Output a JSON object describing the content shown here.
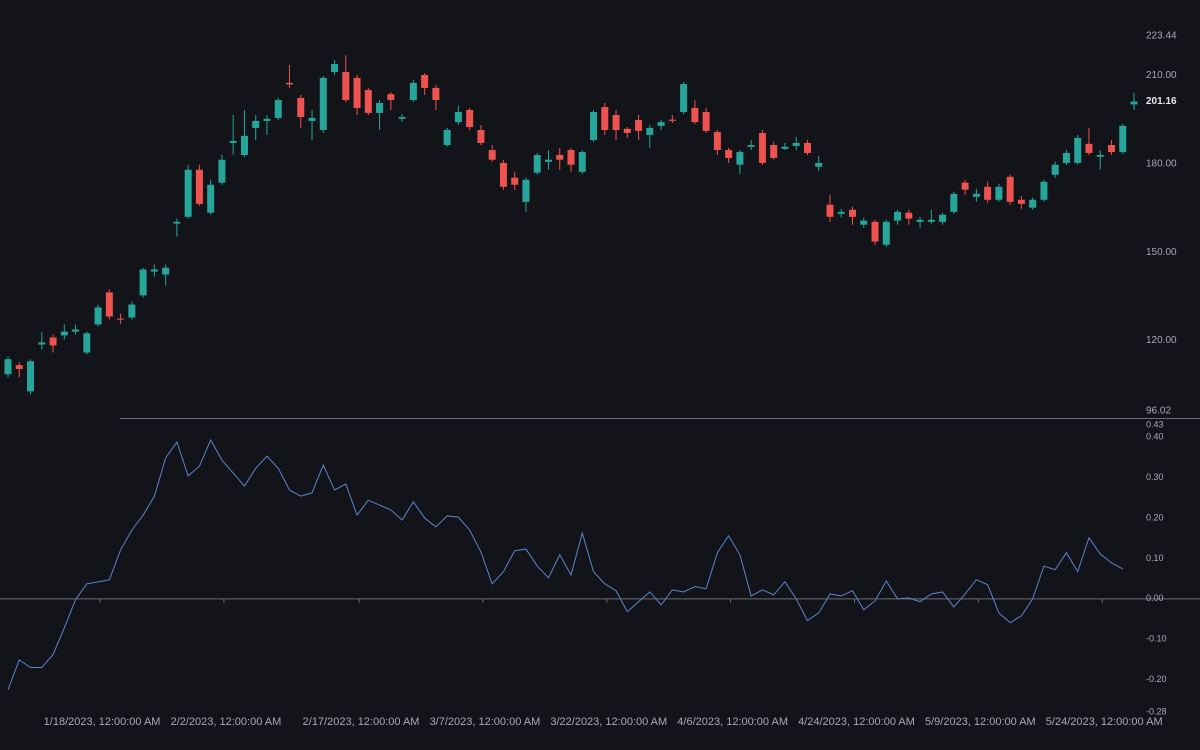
{
  "chart_data": [
    {
      "type": "candlestick",
      "categories": [
        null,
        null,
        null,
        null,
        null,
        null,
        null,
        null,
        "1/18/2023, 12:00:00 AM",
        null,
        null,
        null,
        null,
        null,
        null,
        null,
        null,
        null,
        null,
        "2/2/2023, 12:00:00 AM",
        null,
        null,
        null,
        null,
        null,
        null,
        null,
        null,
        null,
        null,
        null,
        "2/17/2023, 12:00:00 AM",
        null,
        null,
        null,
        null,
        null,
        null,
        null,
        null,
        null,
        null,
        "3/7/2023, 12:00:00 AM",
        null,
        null,
        null,
        null,
        null,
        null,
        null,
        null,
        null,
        null,
        "3/22/2023, 12:00:00 AM",
        null,
        null,
        null,
        null,
        null,
        null,
        null,
        null,
        null,
        null,
        "4/6/2023, 12:00:00 AM",
        null,
        null,
        null,
        null,
        null,
        null,
        null,
        null,
        null,
        null,
        "4/24/2023, 12:00:00 AM",
        null,
        null,
        null,
        null,
        null,
        null,
        null,
        null,
        null,
        null,
        "5/9/2023, 12:00:00 AM",
        null,
        null,
        null,
        null,
        null,
        null,
        null,
        null,
        null,
        null,
        "5/24/2023, 12:00:00 AM",
        null,
        null,
        null
      ],
      "open": [
        108.5,
        111.6,
        102.7,
        118.6,
        121.0,
        121.7,
        123.0,
        115.9,
        125.4,
        136.3,
        127.4,
        127.8,
        135.3,
        143.4,
        142.4,
        159.7,
        162.0,
        178.0,
        163.4,
        173.6,
        187.1,
        183.0,
        192.2,
        194.6,
        195.6,
        207.5,
        202.4,
        194.6,
        191.5,
        211.2,
        211.2,
        209.2,
        205.1,
        197.3,
        203.7,
        195.3,
        201.7,
        210.2,
        205.8,
        186.4,
        194.2,
        198.3,
        191.5,
        184.7,
        180.3,
        175.3,
        167.1,
        177.0,
        180.7,
        183.0,
        184.7,
        177.3,
        188.1,
        199.3,
        196.6,
        191.9,
        194.9,
        189.8,
        192.9,
        195.0,
        197.6,
        199.0,
        197.6,
        190.8,
        184.7,
        179.7,
        185.8,
        190.5,
        186.4,
        185.1,
        186.1,
        187.1,
        179.0,
        166.1,
        163.0,
        164.4,
        159.3,
        160.3,
        152.5,
        160.7,
        163.4,
        160.3,
        160.3,
        160.3,
        163.7,
        173.6,
        168.8,
        172.2,
        167.8,
        175.6,
        167.8,
        165.1,
        167.8,
        176.3,
        180.3,
        180.3,
        186.8,
        182.4,
        186.4,
        184.0,
        200.2
      ],
      "high": [
        114.6,
        112.6,
        113.6,
        122.7,
        122.0,
        125.4,
        125.4,
        123.0,
        132.2,
        137.3,
        129.1,
        133.2,
        144.7,
        145.8,
        145.8,
        161.4,
        179.7,
        179.7,
        174.6,
        183.1,
        196.6,
        198.3,
        196.6,
        196.6,
        202.4,
        213.6,
        203.4,
        198.3,
        209.8,
        215.3,
        216.9,
        210.2,
        205.8,
        201.7,
        204.4,
        196.9,
        208.5,
        210.8,
        206.8,
        192.2,
        199.7,
        199.0,
        193.2,
        186.4,
        181.4,
        177.3,
        175.3,
        183.7,
        184.7,
        185.4,
        185.4,
        184.7,
        198.3,
        200.7,
        198.3,
        192.5,
        196.6,
        193.2,
        194.9,
        196.6,
        207.8,
        201.7,
        199.0,
        191.5,
        185.4,
        184.7,
        188.1,
        191.5,
        187.5,
        187.1,
        189.1,
        188.1,
        182.7,
        169.5,
        164.7,
        165.4,
        161.7,
        161.0,
        161.0,
        164.4,
        164.4,
        162.0,
        164.4,
        163.4,
        170.5,
        174.6,
        171.5,
        173.9,
        173.2,
        176.3,
        169.1,
        168.5,
        174.6,
        180.7,
        184.7,
        189.8,
        192.2,
        184.7,
        188.1,
        193.5,
        204.2
      ],
      "low": [
        107.5,
        107.5,
        101.7,
        116.9,
        115.9,
        120.3,
        122.0,
        115.2,
        124.7,
        127.1,
        125.7,
        127.1,
        134.6,
        141.7,
        138.6,
        155.3,
        161.4,
        165.8,
        162.7,
        172.9,
        183.1,
        182.4,
        188.1,
        189.8,
        194.9,
        205.8,
        192.2,
        188.1,
        190.5,
        210.2,
        201.0,
        196.6,
        196.6,
        191.5,
        198.3,
        194.2,
        201.0,
        203.4,
        198.3,
        185.8,
        193.2,
        191.5,
        186.4,
        180.7,
        171.2,
        171.2,
        163.7,
        176.3,
        178.0,
        178.0,
        177.3,
        176.6,
        187.5,
        189.8,
        188.1,
        188.8,
        188.1,
        185.4,
        191.5,
        193.9,
        196.9,
        193.5,
        190.5,
        183.0,
        180.3,
        176.6,
        184.7,
        179.7,
        181.4,
        184.7,
        184.7,
        183.0,
        177.6,
        160.3,
        161.7,
        159.3,
        158.3,
        152.5,
        151.8,
        159.3,
        159.3,
        158.3,
        159.7,
        159.3,
        163.0,
        169.5,
        167.1,
        166.8,
        167.1,
        166.1,
        164.7,
        164.4,
        167.1,
        175.3,
        179.7,
        179.7,
        183.0,
        178.0,
        183.0,
        183.4,
        198.3
      ],
      "close": [
        113.6,
        110.3,
        112.9,
        119.3,
        118.3,
        123.0,
        123.7,
        122.4,
        131.2,
        128.1,
        127.1,
        132.2,
        144.1,
        144.1,
        144.7,
        160.3,
        178.0,
        166.4,
        172.9,
        181.4,
        187.8,
        189.5,
        194.6,
        195.3,
        201.7,
        207.0,
        195.9,
        195.6,
        209.2,
        213.9,
        201.7,
        199.0,
        197.3,
        200.7,
        201.7,
        195.9,
        207.5,
        205.8,
        201.7,
        191.5,
        197.6,
        192.5,
        187.1,
        181.4,
        172.2,
        172.9,
        174.6,
        183.0,
        181.4,
        181.4,
        179.7,
        184.0,
        197.6,
        191.5,
        191.5,
        190.5,
        191.2,
        192.2,
        194.2,
        194.6,
        207.1,
        194.2,
        191.2,
        184.7,
        182.0,
        184.0,
        186.4,
        180.3,
        182.0,
        185.8,
        187.1,
        183.7,
        180.3,
        162.0,
        163.7,
        162.0,
        160.7,
        153.6,
        160.3,
        163.7,
        161.4,
        161.0,
        161.0,
        162.7,
        169.8,
        171.2,
        169.8,
        167.8,
        172.2,
        167.1,
        166.4,
        167.8,
        173.9,
        179.7,
        183.7,
        188.8,
        183.7,
        183.0,
        184.0,
        192.9,
        201.16
      ],
      "up_color": "#26a69a",
      "down_color": "#ef5350",
      "ylim": [
        96.02,
        223.44
      ],
      "yticks": [
        96.02,
        {
          "value": 120,
          "label": "120.00"
        },
        {
          "value": 150,
          "label": "150.00"
        },
        {
          "value": 180,
          "label": "180.00"
        },
        {
          "value": 210,
          "label": "210.00"
        },
        223.44
      ]
    },
    {
      "type": "line",
      "values": [
        -0.225,
        -0.151,
        -0.17,
        -0.17,
        -0.138,
        -0.072,
        -0.002,
        0.037,
        0.042,
        0.047,
        0.121,
        0.17,
        0.207,
        0.254,
        0.348,
        0.388,
        0.304,
        0.328,
        0.393,
        0.343,
        0.311,
        0.279,
        0.323,
        0.353,
        0.323,
        0.269,
        0.254,
        0.262,
        0.331,
        0.269,
        0.284,
        0.207,
        0.244,
        0.232,
        0.22,
        0.195,
        0.24,
        0.2,
        0.178,
        0.205,
        0.202,
        0.17,
        0.116,
        0.037,
        0.067,
        0.119,
        0.123,
        0.081,
        0.052,
        0.109,
        0.059,
        0.163,
        0.067,
        0.037,
        0.02,
        -0.032,
        -0.007,
        0.017,
        -0.015,
        0.022,
        0.017,
        0.03,
        0.025,
        0.114,
        0.156,
        0.109,
        0.007,
        0.022,
        0.01,
        0.042,
        0.0,
        -0.054,
        -0.035,
        0.012,
        0.007,
        0.02,
        -0.027,
        -0.005,
        0.044,
        0.0,
        0.002,
        -0.007,
        0.012,
        0.017,
        -0.02,
        0.012,
        0.047,
        0.035,
        -0.035,
        -0.059,
        -0.042,
        0.0,
        0.081,
        0.072,
        0.114,
        0.067,
        0.151,
        0.111,
        0.089,
        0.074,
        null
      ],
      "color": "#5b84cf",
      "ylim": [
        -0.28,
        0.43
      ],
      "yticks": [
        -0.28,
        {
          "value": -0.2,
          "label": "-0.20"
        },
        {
          "value": -0.1,
          "label": "-0.10"
        },
        {
          "value": 0,
          "label": "0.00"
        },
        {
          "value": 0.1,
          "label": "0.10"
        },
        {
          "value": 0.2,
          "label": "0.20"
        },
        {
          "value": 0.3,
          "label": "0.30"
        },
        {
          "value": 0.4,
          "label": "0.40"
        },
        0.43
      ]
    }
  ]
}
